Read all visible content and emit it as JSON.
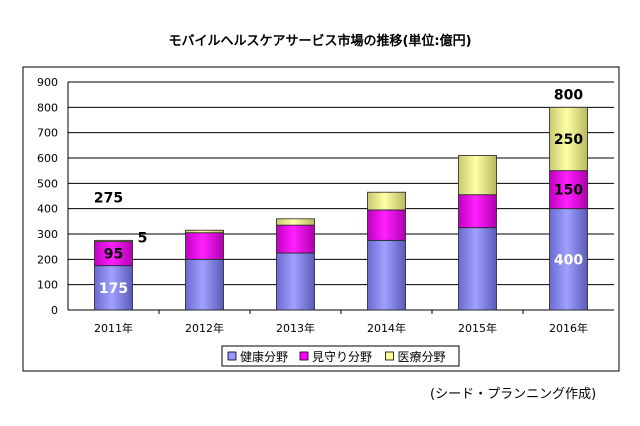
{
  "chart_data": {
    "type": "bar",
    "stacked": true,
    "title": "モバイルヘルスケアサービス市場の推移(単位:億円)",
    "categories": [
      "2011年",
      "2012年",
      "2013年",
      "2014年",
      "2015年",
      "2016年"
    ],
    "series": [
      {
        "name": "健康分野",
        "values": [
          175,
          200,
          225,
          275,
          325,
          400
        ],
        "color": "#9999ff"
      },
      {
        "name": "見守り分野",
        "values": [
          95,
          105,
          110,
          120,
          130,
          150
        ],
        "color": "#ff00ff"
      },
      {
        "name": "医療分野",
        "values": [
          5,
          10,
          25,
          70,
          155,
          250
        ],
        "color": "#ffff99"
      }
    ],
    "totals_labels": [
      {
        "category": "2011年",
        "text": "275"
      },
      {
        "category": "2016年",
        "text": "800"
      }
    ],
    "segment_labels": [
      {
        "category": "2011年",
        "series": 0,
        "text": "175"
      },
      {
        "category": "2011年",
        "series": 1,
        "text": "95"
      },
      {
        "category": "2011年",
        "series": 2,
        "text": "5"
      },
      {
        "category": "2016年",
        "series": 0,
        "text": "400"
      },
      {
        "category": "2016年",
        "series": 1,
        "text": "150"
      },
      {
        "category": "2016年",
        "series": 2,
        "text": "250"
      }
    ],
    "ylim": [
      0,
      900
    ],
    "yticks": [
      "0",
      "100",
      "200",
      "300",
      "400",
      "500",
      "600",
      "700",
      "800",
      "900"
    ],
    "grid": true,
    "legend": "bottom"
  },
  "source": "(シード・プランニング作成)"
}
